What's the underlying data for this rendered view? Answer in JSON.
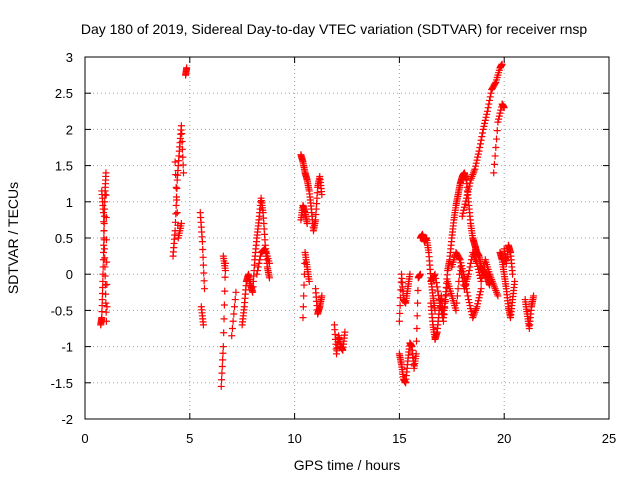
{
  "chart_data": {
    "type": "scatter",
    "title": "Day 180 of 2019, Sidereal Day-to-day VTEC variation (SDTVAR) for receiver rnsp",
    "xlabel": "GPS time / hours",
    "ylabel": "SDTVAR / TECUs",
    "xlim": [
      0,
      25
    ],
    "ylim": [
      -2,
      3
    ],
    "xticks": [
      "0",
      "5",
      "10",
      "15",
      "20",
      "25"
    ],
    "yticks": [
      "-2",
      "-1.5",
      "-1",
      "-0.5",
      "0",
      "0.5",
      "1",
      "1.5",
      "2",
      "2.5",
      "3"
    ],
    "grid": true,
    "marker": "+",
    "color": "#ff0000",
    "series": [
      {
        "name": "",
        "segments": [
          {
            "x": [
              0.75,
              0.8,
              0.85,
              0.9,
              0.95,
              1.0,
              1.05
            ],
            "y": [
              -0.7,
              -0.6,
              -0.1,
              0.5,
              1.1,
              1.4,
              -0.45
            ]
          },
          {
            "x": [
              0.8,
              0.88,
              0.95,
              1.02
            ],
            "y": [
              1.15,
              0.85,
              0.1,
              -0.65
            ]
          },
          {
            "x": [
              4.2,
              4.3,
              4.4,
              4.5,
              4.6,
              4.7
            ],
            "y": [
              0.25,
              0.6,
              1.3,
              1.7,
              2.05,
              1.4
            ]
          },
          {
            "x": [
              4.3,
              4.45,
              4.6
            ],
            "y": [
              1.55,
              0.5,
              0.7
            ]
          },
          {
            "x": [
              4.8,
              4.85
            ],
            "y": [
              2.75,
              2.85
            ]
          },
          {
            "x": [
              5.5,
              5.6,
              5.7
            ],
            "y": [
              0.85,
              0.45,
              -0.2
            ]
          },
          {
            "x": [
              5.55,
              5.65
            ],
            "y": [
              -0.45,
              -0.7
            ]
          },
          {
            "x": [
              6.5,
              6.6,
              6.7
            ],
            "y": [
              -1.55,
              -1.0,
              0.15
            ]
          },
          {
            "x": [
              6.6,
              6.7
            ],
            "y": [
              0.25,
              0.05
            ]
          },
          {
            "x": [
              7.0,
              7.2
            ],
            "y": [
              -0.85,
              -0.25
            ]
          },
          {
            "x": [
              7.5,
              7.6,
              7.7,
              7.8,
              7.9,
              8.0,
              8.1,
              8.2,
              8.3,
              8.4,
              8.5,
              8.6,
              8.7,
              8.8
            ],
            "y": [
              -0.7,
              -0.45,
              -0.1,
              0.0,
              -0.15,
              -0.25,
              0.2,
              0.5,
              0.75,
              1.05,
              0.85,
              0.4,
              0.1,
              -0.05
            ]
          },
          {
            "x": [
              8.2,
              8.4,
              8.6,
              8.8
            ],
            "y": [
              0.0,
              0.3,
              0.35,
              0.15
            ]
          },
          {
            "x": [
              10.3,
              10.4,
              10.5,
              10.6,
              10.7,
              10.8,
              10.9,
              11.0,
              11.1,
              11.2,
              11.3
            ],
            "y": [
              1.65,
              1.55,
              1.4,
              1.3,
              1.15,
              0.9,
              0.6,
              0.75,
              1.2,
              1.35,
              1.1
            ]
          },
          {
            "x": [
              10.3,
              10.4,
              10.5,
              10.6
            ],
            "y": [
              0.75,
              0.95,
              0.85,
              0.7
            ]
          },
          {
            "x": [
              10.4,
              10.5,
              10.6,
              10.7
            ],
            "y": [
              -0.6,
              0.3,
              0.1,
              -0.1
            ]
          },
          {
            "x": [
              11.0,
              11.1,
              11.2,
              11.3
            ],
            "y": [
              -0.2,
              -0.55,
              -0.45,
              -0.3
            ]
          },
          {
            "x": [
              11.9,
              12.0,
              12.1,
              12.2,
              12.3,
              12.4
            ],
            "y": [
              -0.7,
              -1.1,
              -0.85,
              -1.0,
              -1.05,
              -0.8
            ]
          },
          {
            "x": [
              15.0,
              15.1,
              15.2,
              15.3,
              15.4,
              15.5,
              15.6,
              15.7,
              15.8,
              15.9,
              16.0
            ],
            "y": [
              -1.1,
              -1.25,
              -1.45,
              -1.5,
              -1.2,
              -0.95,
              -1.0,
              -1.3,
              -1.1,
              -0.05,
              0.0
            ]
          },
          {
            "x": [
              15.0,
              15.1,
              15.2,
              15.3,
              15.4,
              15.5
            ],
            "y": [
              -0.65,
              0.0,
              -0.35,
              -0.4,
              -0.2,
              0.0
            ]
          },
          {
            "x": [
              16.0,
              16.1,
              16.2,
              16.3,
              16.4,
              16.5,
              16.6,
              16.7
            ],
            "y": [
              0.5,
              0.55,
              0.45,
              0.5,
              0.3,
              -0.05,
              -0.3,
              -0.5
            ]
          },
          {
            "x": [
              16.5,
              16.6,
              16.7,
              16.8,
              16.9,
              17.0,
              17.1,
              17.2,
              17.3,
              17.4,
              17.5,
              17.6,
              17.7,
              17.8,
              17.9,
              18.0,
              18.1,
              18.2,
              18.3,
              18.4,
              18.5,
              18.6,
              18.7,
              18.8,
              18.9,
              19.0,
              19.1,
              19.2,
              19.3
            ],
            "y": [
              -0.4,
              -0.7,
              -0.9,
              -0.8,
              -0.5,
              -0.3,
              -0.6,
              -0.3,
              0.05,
              0.2,
              0.5,
              0.75,
              0.95,
              1.1,
              1.25,
              1.35,
              1.4,
              1.3,
              1.0,
              0.7,
              0.5,
              0.4,
              0.3,
              0.25,
              0.1,
              0.05,
              0.0,
              -0.05,
              -0.15
            ]
          },
          {
            "x": [
              16.5,
              16.7,
              16.9,
              17.1,
              17.3,
              17.5,
              17.7,
              17.9,
              18.1,
              18.3,
              18.5,
              18.7,
              18.9,
              19.1,
              19.3,
              19.5,
              19.7
            ],
            "y": [
              -0.1,
              0.0,
              -0.35,
              -0.65,
              -0.1,
              -0.3,
              -0.5,
              0.1,
              -0.2,
              0.0,
              0.3,
              0.15,
              -0.1,
              0.2,
              0.0,
              -0.15,
              -0.3
            ]
          },
          {
            "x": [
              17.5,
              17.7,
              17.9,
              18.1,
              18.3,
              18.5,
              18.7,
              18.9
            ],
            "y": [
              0.1,
              0.3,
              0.2,
              -0.05,
              -0.35,
              -0.6,
              -0.45,
              -0.2
            ]
          },
          {
            "x": [
              18.0,
              18.2,
              18.4,
              18.6,
              18.8,
              19.0,
              19.2,
              19.4,
              19.6,
              19.8,
              19.9
            ],
            "y": [
              0.8,
              1.05,
              1.3,
              1.45,
              1.7,
              2.0,
              2.25,
              2.55,
              2.65,
              2.85,
              2.9
            ]
          },
          {
            "x": [
              19.5,
              19.7,
              19.9,
              20.0
            ],
            "y": [
              1.4,
              2.1,
              2.35,
              2.3
            ]
          },
          {
            "x": [
              19.8,
              19.9,
              20.0,
              20.1,
              20.2,
              20.3,
              20.4,
              20.5
            ],
            "y": [
              0.3,
              0.2,
              0.0,
              -0.2,
              -0.45,
              -0.6,
              -0.35,
              -0.1
            ]
          },
          {
            "x": [
              20.0,
              20.1,
              20.2,
              20.3,
              20.4
            ],
            "y": [
              0.35,
              0.15,
              0.4,
              0.3,
              0.0
            ]
          },
          {
            "x": [
              21.0,
              21.1,
              21.2,
              21.3,
              21.4
            ],
            "y": [
              -0.35,
              -0.55,
              -0.75,
              -0.45,
              -0.3
            ]
          }
        ]
      }
    ]
  }
}
